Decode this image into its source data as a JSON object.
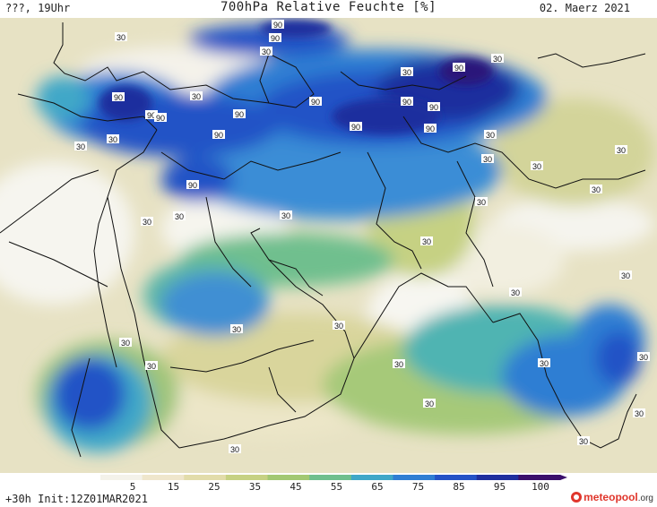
{
  "header": {
    "left_label": "???, 19Uhr",
    "title": "700hPa Relative Feuchte [%]",
    "date": "02. Maerz 2021"
  },
  "footer": {
    "init_label": "+30h Init:12Z01MAR2021",
    "brand_main": "meteopool",
    "brand_suffix": ".org"
  },
  "colorbar": {
    "ticks": [
      "5",
      "15",
      "25",
      "35",
      "45",
      "55",
      "65",
      "75",
      "85",
      "95",
      "100"
    ],
    "colors": [
      "#f4f2ea",
      "#efe6cc",
      "#e2dcaa",
      "#c6d183",
      "#a2c873",
      "#6fbf8e",
      "#3fa7c8",
      "#2f7ed3",
      "#2452c6",
      "#1f2f9e",
      "#3a0f6c"
    ]
  },
  "contour_labels": [
    "90",
    "90",
    "90",
    "90",
    "90",
    "90",
    "90",
    "90",
    "90",
    "90",
    "90",
    "90",
    "90",
    "90",
    "30",
    "30",
    "30",
    "30",
    "30",
    "30",
    "30",
    "30",
    "30",
    "30",
    "30",
    "30",
    "30",
    "30",
    "30",
    "30",
    "30",
    "30",
    "30",
    "30",
    "30",
    "30",
    "30",
    "30",
    "30",
    "30",
    "30",
    "30",
    "30",
    "30"
  ],
  "legend_icons": {
    "brand_icon": "meteopool-logo-icon"
  }
}
